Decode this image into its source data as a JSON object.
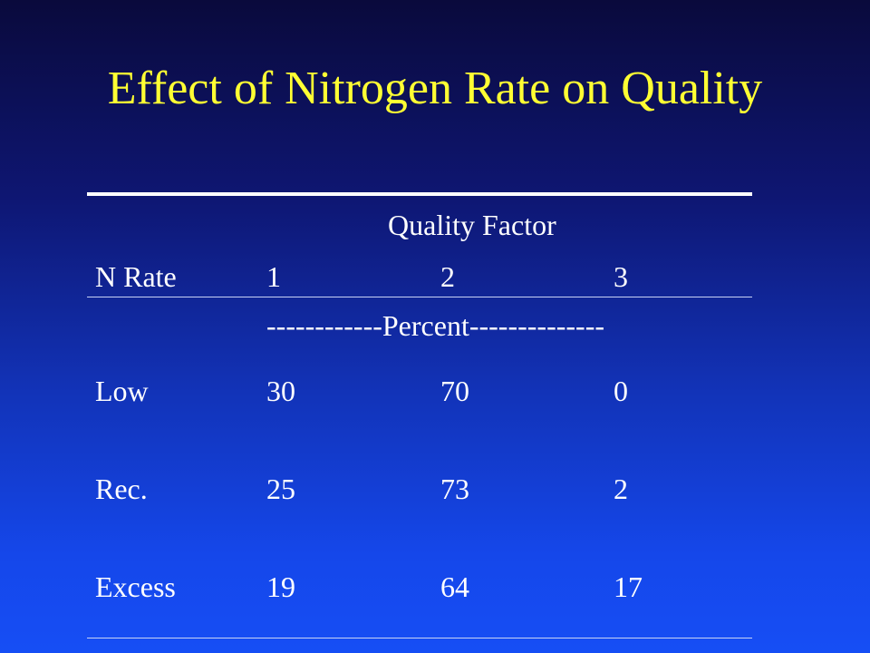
{
  "slide": {
    "title": "Effect of Nitrogen Rate on Quality"
  },
  "table": {
    "group_header": "Quality Factor",
    "columns": [
      "N Rate",
      "1",
      "2",
      "3"
    ],
    "unit_row": "------------Percent--------------",
    "rows": [
      {
        "label": "Low",
        "values": [
          "30",
          "70",
          "0"
        ]
      },
      {
        "label": "Rec.",
        "values": [
          "25",
          "73",
          "2"
        ]
      },
      {
        "label": "Excess",
        "values": [
          "19",
          "64",
          "17"
        ]
      }
    ]
  },
  "colors": {
    "title": "#ffff33",
    "text": "#ffffff",
    "background_top": "#0a0a3c",
    "background_bottom": "#164ef5"
  }
}
